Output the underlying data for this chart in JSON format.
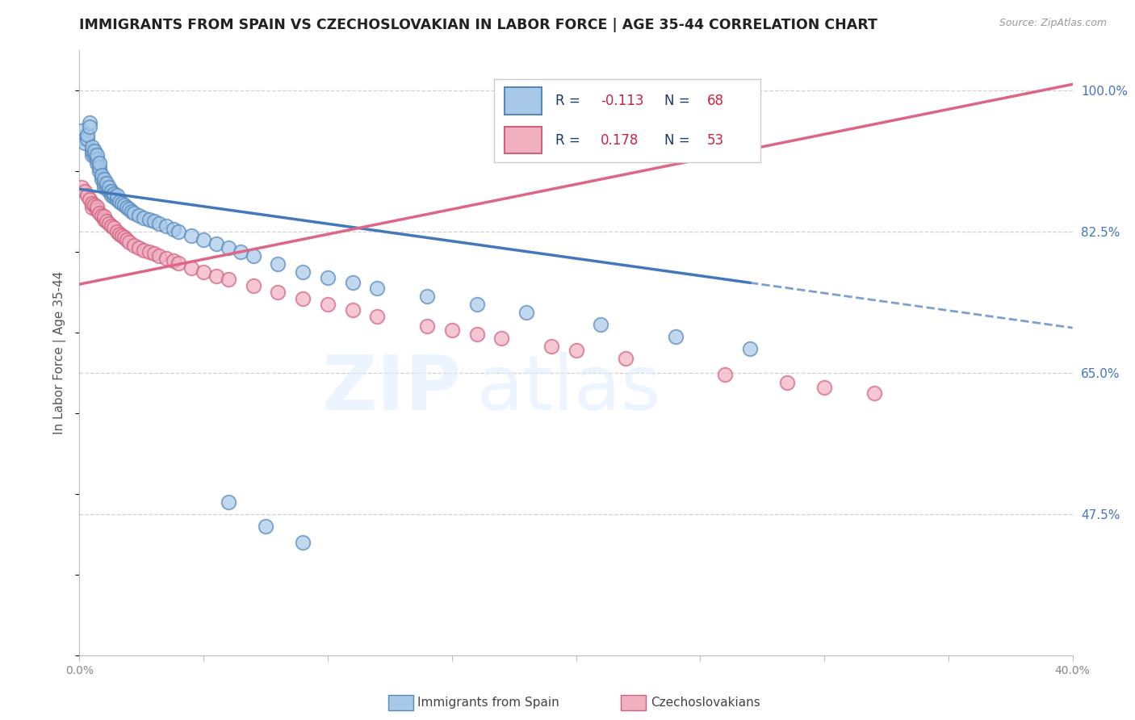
{
  "title": "IMMIGRANTS FROM SPAIN VS CZECHOSLOVAKIAN IN LABOR FORCE | AGE 35-44 CORRELATION CHART",
  "source": "Source: ZipAtlas.com",
  "ylabel": "In Labor Force | Age 35-44",
  "xlim": [
    0.0,
    0.4
  ],
  "ylim": [
    0.3,
    1.05
  ],
  "ytick_pos": [
    0.475,
    0.65,
    0.825,
    1.0
  ],
  "ytick_labels": [
    "47.5%",
    "65.0%",
    "82.5%",
    "100.0%"
  ],
  "xtick_pos": [
    0.0,
    0.05,
    0.1,
    0.15,
    0.2,
    0.25,
    0.3,
    0.35,
    0.4
  ],
  "xtick_labels": [
    "0.0%",
    "",
    "",
    "",
    "",
    "",
    "",
    "",
    "40.0%"
  ],
  "grid_color": "#cccccc",
  "bg_color": "#ffffff",
  "spain_face": "#a8c8e8",
  "spain_edge": "#5588bb",
  "czech_face": "#f0b0c0",
  "czech_edge": "#d06080",
  "spain_line": "#4477bb",
  "czech_line": "#dd6688",
  "R_spain": -0.113,
  "N_spain": 68,
  "R_czech": 0.178,
  "N_czech": 53,
  "label_color": "#1a3a6b",
  "value_color": "#cc2244",
  "right_axis_color": "#4472c4",
  "spain_line_intercept": 0.878,
  "spain_line_slope": -0.43,
  "czech_line_intercept": 0.76,
  "czech_line_slope": 0.62,
  "spain_x": [
    0.001,
    0.002,
    0.002,
    0.003,
    0.003,
    0.004,
    0.004,
    0.005,
    0.005,
    0.005,
    0.006,
    0.006,
    0.007,
    0.007,
    0.007,
    0.008,
    0.008,
    0.008,
    0.009,
    0.009,
    0.01,
    0.01,
    0.01,
    0.011,
    0.011,
    0.012,
    0.012,
    0.013,
    0.013,
    0.014,
    0.014,
    0.015,
    0.015,
    0.016,
    0.017,
    0.018,
    0.019,
    0.02,
    0.021,
    0.022,
    0.024,
    0.026,
    0.028,
    0.03,
    0.032,
    0.035,
    0.038,
    0.04,
    0.045,
    0.05,
    0.055,
    0.06,
    0.065,
    0.07,
    0.08,
    0.09,
    0.1,
    0.11,
    0.12,
    0.14,
    0.16,
    0.18,
    0.21,
    0.24,
    0.27,
    0.06,
    0.075,
    0.09
  ],
  "spain_y": [
    0.95,
    0.94,
    0.935,
    0.94,
    0.945,
    0.96,
    0.955,
    0.92,
    0.925,
    0.93,
    0.92,
    0.925,
    0.91,
    0.915,
    0.92,
    0.9,
    0.905,
    0.91,
    0.89,
    0.895,
    0.88,
    0.885,
    0.89,
    0.88,
    0.885,
    0.875,
    0.88,
    0.87,
    0.875,
    0.868,
    0.872,
    0.865,
    0.87,
    0.862,
    0.86,
    0.858,
    0.855,
    0.853,
    0.85,
    0.848,
    0.845,
    0.842,
    0.84,
    0.838,
    0.835,
    0.832,
    0.828,
    0.825,
    0.82,
    0.815,
    0.81,
    0.805,
    0.8,
    0.795,
    0.785,
    0.775,
    0.768,
    0.762,
    0.755,
    0.745,
    0.735,
    0.725,
    0.71,
    0.695,
    0.68,
    0.49,
    0.46,
    0.44
  ],
  "czech_x": [
    0.001,
    0.002,
    0.003,
    0.004,
    0.005,
    0.005,
    0.006,
    0.007,
    0.007,
    0.008,
    0.009,
    0.01,
    0.01,
    0.011,
    0.012,
    0.013,
    0.014,
    0.015,
    0.016,
    0.017,
    0.018,
    0.019,
    0.02,
    0.022,
    0.024,
    0.026,
    0.028,
    0.03,
    0.032,
    0.035,
    0.038,
    0.04,
    0.045,
    0.05,
    0.055,
    0.06,
    0.07,
    0.08,
    0.09,
    0.1,
    0.11,
    0.12,
    0.14,
    0.15,
    0.16,
    0.17,
    0.19,
    0.2,
    0.22,
    0.26,
    0.285,
    0.3,
    0.32
  ],
  "czech_y": [
    0.88,
    0.875,
    0.87,
    0.865,
    0.855,
    0.86,
    0.858,
    0.852,
    0.856,
    0.848,
    0.845,
    0.84,
    0.844,
    0.838,
    0.835,
    0.832,
    0.83,
    0.825,
    0.822,
    0.82,
    0.818,
    0.815,
    0.812,
    0.808,
    0.805,
    0.802,
    0.8,
    0.798,
    0.795,
    0.792,
    0.789,
    0.786,
    0.78,
    0.775,
    0.77,
    0.766,
    0.758,
    0.75,
    0.742,
    0.735,
    0.728,
    0.72,
    0.708,
    0.703,
    0.698,
    0.693,
    0.683,
    0.678,
    0.668,
    0.648,
    0.638,
    0.632,
    0.625
  ]
}
